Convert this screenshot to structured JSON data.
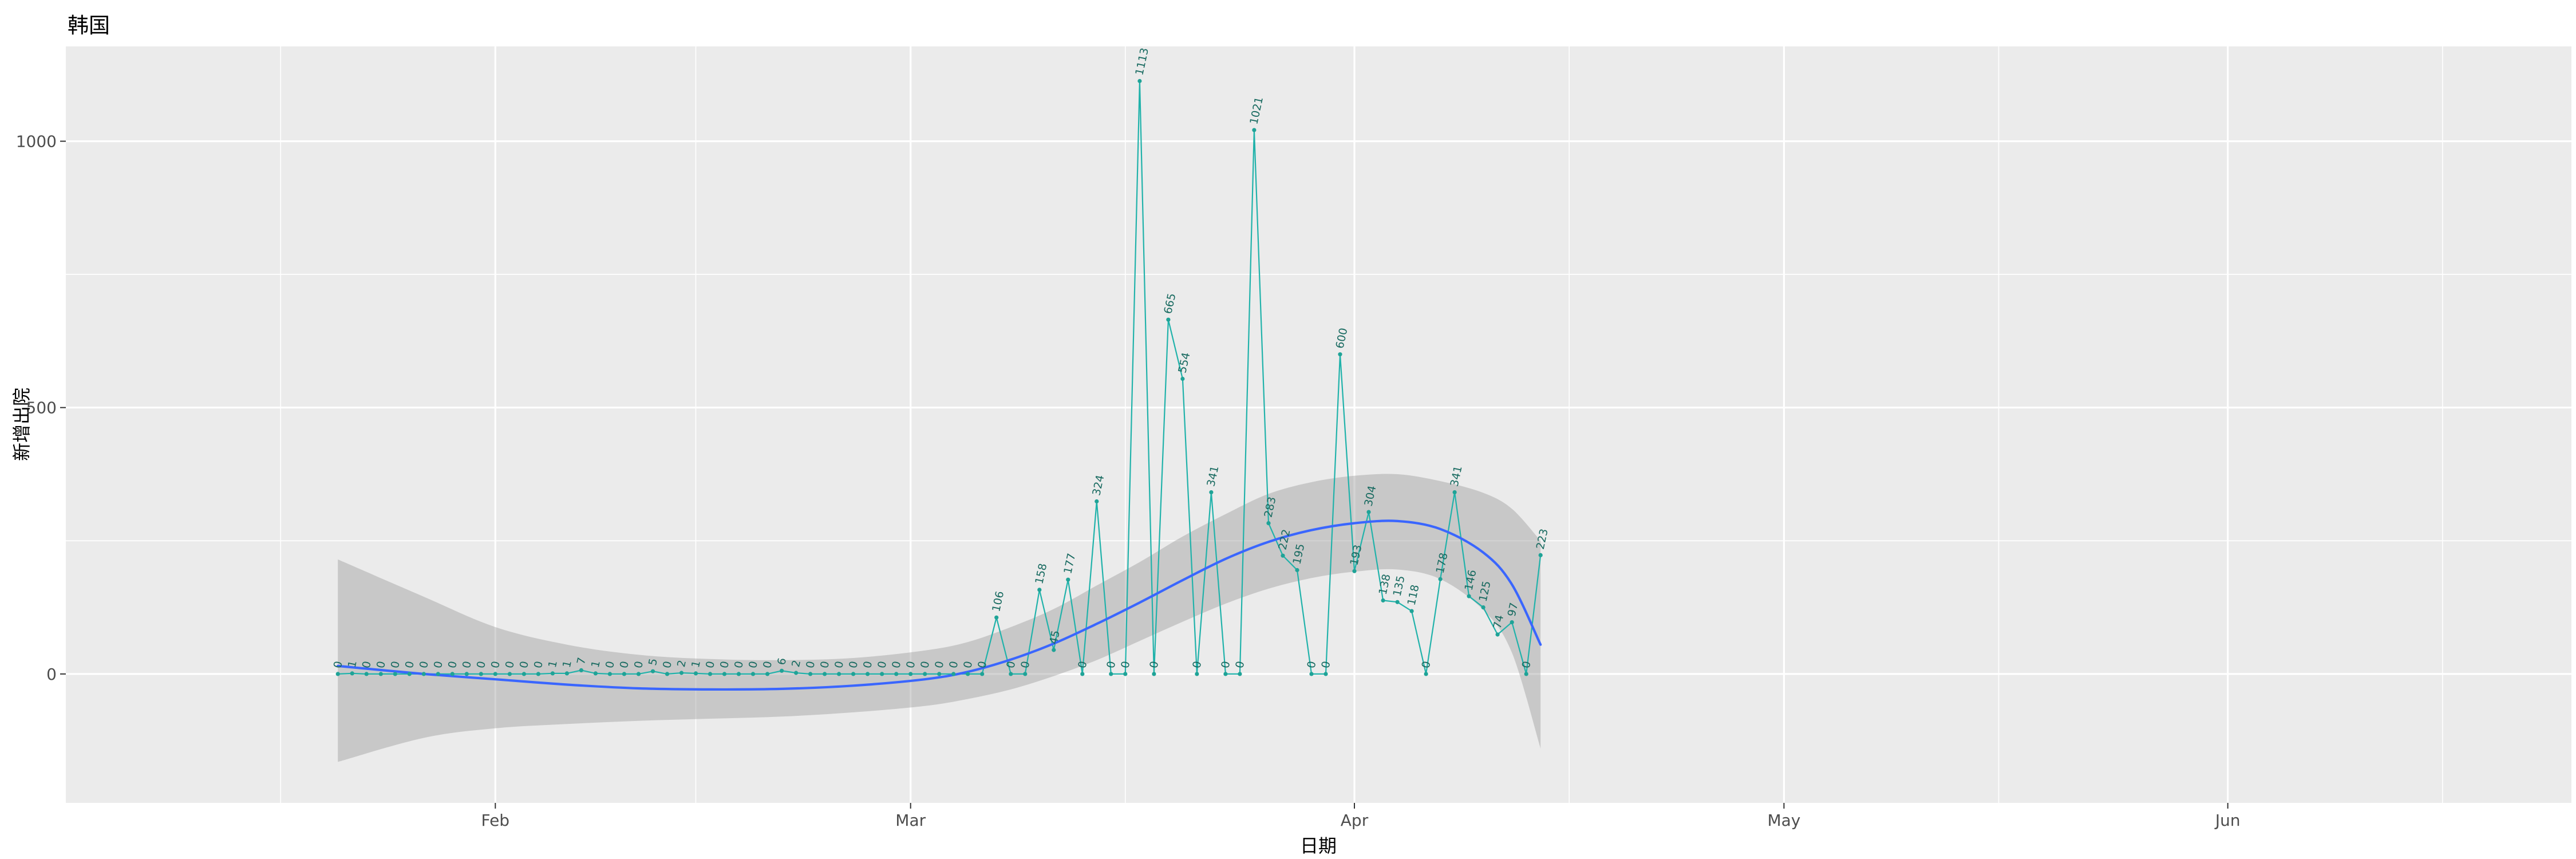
{
  "title": "韩国",
  "axes": {
    "x_label": "日期",
    "y_label": "新增出院"
  },
  "chart_data": {
    "type": "line",
    "title": "韩国",
    "xlabel": "日期",
    "ylabel": "新增出院",
    "x_range": [
      "2020-01-02",
      "2020-06-25"
    ],
    "y_range": [
      -242,
      1178
    ],
    "x_ticks": [
      {
        "date": "2020-02-01",
        "label": "Feb"
      },
      {
        "date": "2020-03-01",
        "label": "Mar"
      },
      {
        "date": "2020-04-01",
        "label": "Apr"
      },
      {
        "date": "2020-05-01",
        "label": "May"
      },
      {
        "date": "2020-06-01",
        "label": "Jun"
      }
    ],
    "x_minor": [
      "2020-01-17",
      "2020-02-15",
      "2020-03-16",
      "2020-04-16",
      "2020-05-16",
      "2020-06-16"
    ],
    "y_ticks": [
      {
        "value": 0,
        "label": "0"
      },
      {
        "value": 500,
        "label": "500"
      },
      {
        "value": 1000,
        "label": "1000"
      }
    ],
    "y_minor": [
      250,
      750
    ],
    "grid": true,
    "legend": "none",
    "colors": {
      "panel_bg": "#EBEBEB",
      "grid": "#FFFFFF",
      "series": "#20B2AA",
      "point": "#1FA397",
      "point_label": "#186A60",
      "smooth_line": "#3A66FF",
      "band": "#999999",
      "band_opacity": 0.42,
      "tick_text": "#4D4D4D",
      "tick_mark": "#333333"
    },
    "series": [
      {
        "name": "新增出院",
        "dates": [
          "2020-01-21",
          "2020-01-22",
          "2020-01-23",
          "2020-01-24",
          "2020-01-25",
          "2020-01-26",
          "2020-01-27",
          "2020-01-28",
          "2020-01-29",
          "2020-01-30",
          "2020-01-31",
          "2020-02-01",
          "2020-02-02",
          "2020-02-03",
          "2020-02-04",
          "2020-02-05",
          "2020-02-06",
          "2020-02-07",
          "2020-02-08",
          "2020-02-09",
          "2020-02-10",
          "2020-02-11",
          "2020-02-12",
          "2020-02-13",
          "2020-02-14",
          "2020-02-15",
          "2020-02-16",
          "2020-02-17",
          "2020-02-18",
          "2020-02-19",
          "2020-02-20",
          "2020-02-21",
          "2020-02-22",
          "2020-02-23",
          "2020-02-24",
          "2020-02-25",
          "2020-02-26",
          "2020-02-27",
          "2020-02-28",
          "2020-02-29",
          "2020-03-01",
          "2020-03-02",
          "2020-03-03",
          "2020-03-04",
          "2020-03-05",
          "2020-03-06",
          "2020-03-07",
          "2020-03-08",
          "2020-03-09",
          "2020-03-10",
          "2020-03-11",
          "2020-03-12",
          "2020-03-13",
          "2020-03-14",
          "2020-03-15",
          "2020-03-16",
          "2020-03-17",
          "2020-03-18",
          "2020-03-19",
          "2020-03-20",
          "2020-03-21",
          "2020-03-22",
          "2020-03-23",
          "2020-03-24",
          "2020-03-25",
          "2020-03-26",
          "2020-03-27",
          "2020-03-28",
          "2020-03-29",
          "2020-03-30",
          "2020-03-31",
          "2020-04-01",
          "2020-04-02",
          "2020-04-03",
          "2020-04-04",
          "2020-04-05",
          "2020-04-06",
          "2020-04-07",
          "2020-04-08",
          "2020-04-09",
          "2020-04-10",
          "2020-04-11",
          "2020-04-12",
          "2020-04-13",
          "2020-04-14"
        ],
        "values": [
          0,
          1,
          0,
          0,
          0,
          0,
          0,
          0,
          0,
          0,
          0,
          0,
          0,
          0,
          0,
          1,
          1,
          7,
          1,
          0,
          0,
          0,
          5,
          0,
          2,
          1,
          0,
          0,
          0,
          0,
          0,
          6,
          2,
          0,
          0,
          0,
          0,
          0,
          0,
          0,
          0,
          0,
          0,
          0,
          0,
          0,
          106,
          0,
          0,
          158,
          45,
          177,
          0,
          324,
          0,
          0,
          1113,
          0,
          665,
          554,
          0,
          341,
          0,
          0,
          1021,
          283,
          222,
          195,
          0,
          0,
          600,
          193,
          304,
          138,
          135,
          118,
          0,
          178,
          341,
          146,
          125,
          74,
          97,
          0,
          223
        ],
        "labels_shown": true
      }
    ],
    "smooth": {
      "method": "loess",
      "dates": [
        "2020-01-21",
        "2020-01-27",
        "2020-02-01",
        "2020-02-06",
        "2020-02-11",
        "2020-02-16",
        "2020-02-21",
        "2020-02-26",
        "2020-03-02",
        "2020-03-05",
        "2020-03-08",
        "2020-03-11",
        "2020-03-14",
        "2020-03-17",
        "2020-03-20",
        "2020-03-23",
        "2020-03-26",
        "2020-03-29",
        "2020-04-01",
        "2020-04-04",
        "2020-04-07",
        "2020-04-10",
        "2020-04-12",
        "2020-04-14"
      ],
      "y": [
        15,
        0,
        -10,
        -20,
        -27,
        -29,
        -28,
        -22,
        -10,
        4,
        27,
        57,
        94,
        134,
        176,
        216,
        248,
        270,
        283,
        287,
        272,
        228,
        168,
        55
      ],
      "ymin": [
        -165,
        -120,
        -102,
        -94,
        -88,
        -84,
        -80,
        -72,
        -60,
        -47,
        -29,
        -4,
        26,
        62,
        98,
        132,
        160,
        180,
        192,
        196,
        178,
        120,
        40,
        -140
      ],
      "ymax": [
        215,
        145,
        88,
        55,
        36,
        28,
        26,
        30,
        44,
        60,
        88,
        122,
        166,
        210,
        258,
        300,
        338,
        360,
        372,
        375,
        362,
        340,
        310,
        250
      ]
    }
  }
}
